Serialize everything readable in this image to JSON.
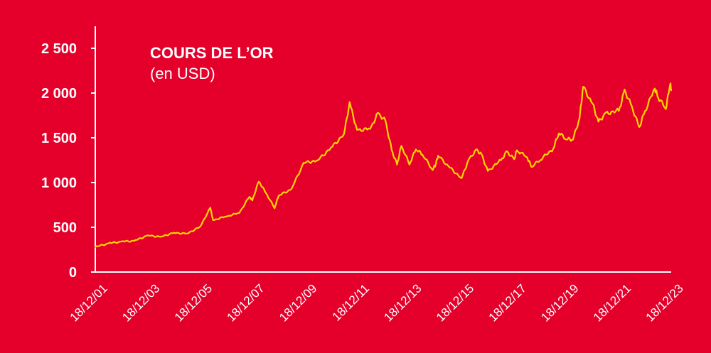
{
  "chart_data": {
    "type": "line",
    "title": "COURS DE L’OR",
    "subtitle": "(en USD)",
    "xlabel": "",
    "ylabel": "",
    "ylim": [
      0,
      2500
    ],
    "y_ticks": [
      {
        "value": 0,
        "label": "0"
      },
      {
        "value": 500,
        "label": "500"
      },
      {
        "value": 1000,
        "label": "1 000"
      },
      {
        "value": 1500,
        "label": "1 500"
      },
      {
        "value": 2000,
        "label": "2 000"
      },
      {
        "value": 2500,
        "label": "2 500"
      }
    ],
    "x_ticks": [
      "18/12/01",
      "18/12/03",
      "18/12/05",
      "18/12/07",
      "18/12/09",
      "18/12/11",
      "18/12/13",
      "18/12/15",
      "18/12/17",
      "18/12/19",
      "18/12/21",
      "18/12/23"
    ],
    "grid": false,
    "legend": "none",
    "colors": {
      "background": "#e4002b",
      "line": "#ffd400",
      "axis": "#ffffff",
      "text": "#ffffff"
    },
    "series": [
      {
        "x": [
          "2001-12-18",
          "2002-06-18",
          "2002-12-18",
          "2003-06-18",
          "2003-12-18",
          "2004-06-18",
          "2004-12-18",
          "2005-06-18",
          "2005-12-18",
          "2006-05-12",
          "2006-06-18",
          "2006-12-18",
          "2007-06-18",
          "2007-11-08",
          "2007-12-18",
          "2008-03-17",
          "2008-06-18",
          "2008-10-24",
          "2008-12-18",
          "2009-06-18",
          "2009-12-03",
          "2010-06-18",
          "2010-12-18",
          "2011-06-18",
          "2011-09-06",
          "2011-12-18",
          "2012-06-18",
          "2012-10-05",
          "2013-01-18",
          "2013-04-15",
          "2013-06-28",
          "2013-08-28",
          "2013-12-18",
          "2014-03-18",
          "2014-06-18",
          "2014-11-07",
          "2014-12-18",
          "2015-01-22",
          "2015-06-18",
          "2015-12-17",
          "2016-03-18",
          "2016-07-06",
          "2016-09-18",
          "2016-12-15",
          "2017-06-18",
          "2017-09-08",
          "2017-12-18",
          "2018-01-25",
          "2018-06-18",
          "2018-08-16",
          "2018-12-18",
          "2019-06-18",
          "2019-09-04",
          "2019-12-18",
          "2020-03-19",
          "2020-06-18",
          "2020-08-06",
          "2020-12-18",
          "2021-03-08",
          "2021-06-18",
          "2021-12-18",
          "2022-03-08",
          "2022-06-18",
          "2022-09-28",
          "2022-12-18",
          "2023-05-04",
          "2023-06-18",
          "2023-10-05",
          "2023-12-04",
          "2023-12-18"
        ],
        "y": [
          278,
          320,
          340,
          350,
          410,
          395,
          440,
          430,
          505,
          720,
          580,
          620,
          660,
          840,
          800,
          1010,
          890,
          712,
          850,
          930,
          1220,
          1250,
          1390,
          1540,
          1900,
          1590,
          1600,
          1780,
          1690,
          1360,
          1200,
          1410,
          1200,
          1370,
          1310,
          1140,
          1200,
          1300,
          1180,
          1050,
          1250,
          1370,
          1320,
          1130,
          1250,
          1350,
          1260,
          1360,
          1280,
          1175,
          1250,
          1380,
          1550,
          1480,
          1480,
          1720,
          2070,
          1880,
          1680,
          1780,
          1800,
          2040,
          1850,
          1620,
          1800,
          2050,
          1950,
          1820,
          2100,
          2030
        ]
      }
    ]
  }
}
